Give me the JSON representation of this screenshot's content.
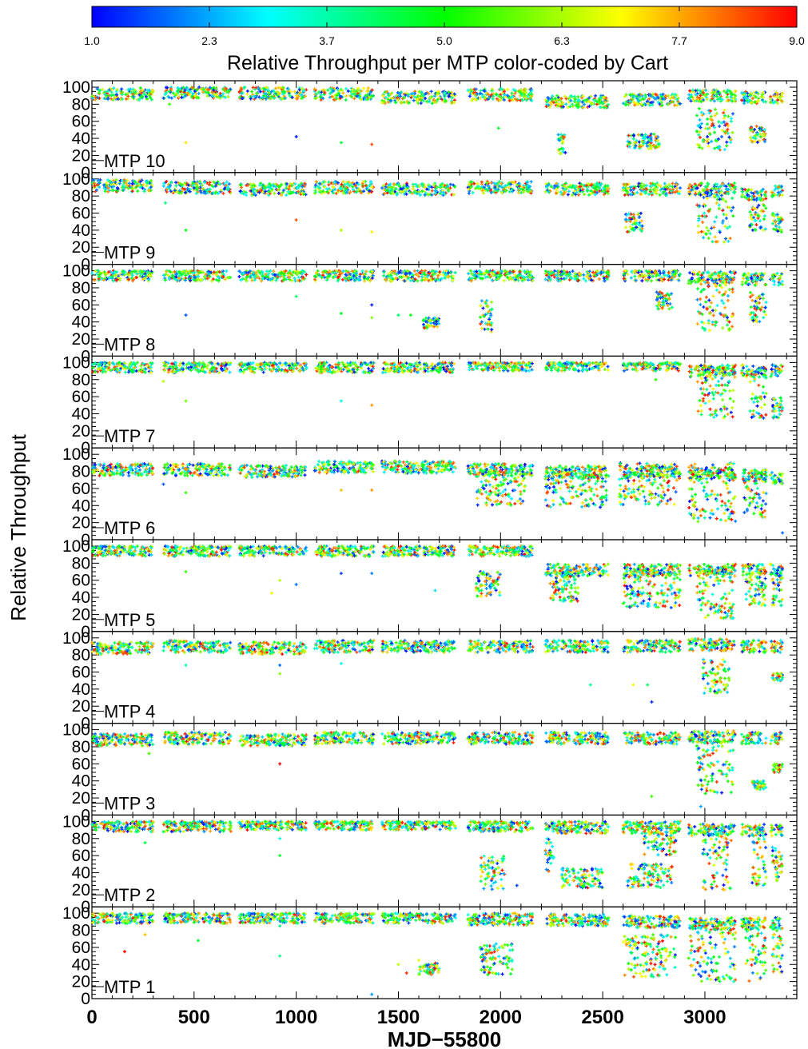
{
  "chart_data": {
    "type": "scatter",
    "title": "Relative Throughput per MTP color-coded by Cart",
    "xlabel": "MJD−55800",
    "ylabel": "Relative Throughput",
    "xlim": [
      0,
      3450
    ],
    "ylim": [
      0,
      100
    ],
    "xticks": [
      0,
      500,
      1000,
      1500,
      2000,
      2500,
      3000
    ],
    "yticks": [
      0,
      20,
      40,
      60,
      80,
      100
    ],
    "grid": false,
    "colorbar": {
      "label": "Relative Throughput per MTP color-coded by Cart",
      "ticks": [
        "1.0",
        "2.3",
        "3.7",
        "5.0",
        "6.3",
        "7.7",
        "9.0"
      ],
      "range": [
        1,
        9
      ],
      "colormap": [
        "#0000ff",
        "#00ffff",
        "#00ff00",
        "#ffff00",
        "#ff0000"
      ],
      "placement": "top"
    },
    "observing_windows": [
      [
        0,
        300
      ],
      [
        350,
        680
      ],
      [
        720,
        1050
      ],
      [
        1090,
        1380
      ],
      [
        1420,
        1780
      ],
      [
        1840,
        2160
      ],
      [
        2220,
        2530
      ],
      [
        2600,
        2880
      ],
      [
        2920,
        3150
      ],
      [
        3180,
        3300
      ],
      [
        3320,
        3380
      ]
    ],
    "panels": [
      {
        "label": "MTP 10",
        "baseline": [
          92,
          94,
          93,
          92,
          88,
          91,
          83,
          85,
          90,
          88,
          87
        ],
        "features": [
          {
            "x": [
              2280,
              2320
            ],
            "y": [
              22,
              45
            ]
          },
          {
            "x": [
              2620,
              2780
            ],
            "y": [
              28,
              45
            ]
          },
          {
            "x": [
              2960,
              3140
            ],
            "y": [
              25,
              75
            ]
          },
          {
            "x": [
              3220,
              3300
            ],
            "y": [
              35,
              55
            ]
          }
        ],
        "outliers": [
          [
            380,
            80
          ],
          [
            460,
            35
          ],
          [
            1000,
            42
          ],
          [
            1220,
            35
          ],
          [
            1370,
            33
          ],
          [
            1990,
            52
          ]
        ]
      },
      {
        "label": "MTP 9",
        "baseline": [
          92,
          90,
          88,
          90,
          88,
          90,
          88,
          88,
          88,
          82,
          85
        ],
        "features": [
          {
            "x": [
              2610,
              2700
            ],
            "y": [
              38,
              60
            ]
          },
          {
            "x": [
              2960,
              3140
            ],
            "y": [
              25,
              90
            ]
          },
          {
            "x": [
              3220,
              3300
            ],
            "y": [
              40,
              70
            ]
          },
          {
            "x": [
              3330,
              3380
            ],
            "y": [
              35,
              60
            ]
          }
        ],
        "outliers": [
          [
            360,
            72
          ],
          [
            460,
            40
          ],
          [
            1000,
            52
          ],
          [
            1220,
            40
          ],
          [
            1370,
            38
          ]
        ]
      },
      {
        "label": "MTP 8",
        "baseline": [
          95,
          95,
          95,
          95,
          95,
          95,
          95,
          95,
          92,
          90,
          90
        ],
        "features": [
          {
            "x": [
              1900,
              1960
            ],
            "y": [
              28,
              65
            ]
          },
          {
            "x": [
              1620,
              1700
            ],
            "y": [
              32,
              45
            ]
          },
          {
            "x": [
              2760,
              2840
            ],
            "y": [
              55,
              75
            ]
          },
          {
            "x": [
              2960,
              3140
            ],
            "y": [
              30,
              90
            ]
          },
          {
            "x": [
              3220,
              3300
            ],
            "y": [
              40,
              75
            ]
          }
        ],
        "outliers": [
          [
            460,
            48
          ],
          [
            1000,
            70
          ],
          [
            1220,
            50
          ],
          [
            1370,
            45
          ],
          [
            1370,
            60
          ],
          [
            1500,
            48
          ],
          [
            1560,
            48
          ]
        ]
      },
      {
        "label": "MTP 7",
        "baseline": [
          95,
          95,
          95,
          95,
          95,
          97,
          97,
          97,
          90,
          90,
          90
        ],
        "features": [
          {
            "x": [
              2960,
              3140
            ],
            "y": [
              35,
              95
            ]
          },
          {
            "x": [
              3220,
              3300
            ],
            "y": [
              35,
              95
            ]
          },
          {
            "x": [
              3330,
              3380
            ],
            "y": [
              35,
              60
            ]
          }
        ],
        "outliers": [
          [
            350,
            78
          ],
          [
            460,
            55
          ],
          [
            1220,
            55
          ],
          [
            1370,
            50
          ],
          [
            2760,
            80
          ]
        ]
      },
      {
        "label": "MTP 6",
        "baseline": [
          82,
          82,
          80,
          85,
          85,
          82,
          80,
          80,
          78,
          75,
          72
        ],
        "features": [
          {
            "x": [
              1880,
              2120
            ],
            "y": [
              40,
              80
            ]
          },
          {
            "x": [
              2220,
              2520
            ],
            "y": [
              38,
              80
            ]
          },
          {
            "x": [
              2580,
              2880
            ],
            "y": [
              40,
              90
            ]
          },
          {
            "x": [
              2920,
              3150
            ],
            "y": [
              20,
              90
            ]
          },
          {
            "x": [
              3190,
              3300
            ],
            "y": [
              25,
              80
            ]
          }
        ],
        "outliers": [
          [
            350,
            65
          ],
          [
            460,
            55
          ],
          [
            1220,
            58
          ],
          [
            1370,
            58
          ],
          [
            3380,
            8
          ]
        ]
      },
      {
        "label": "MTP 5",
        "baseline": [
          95,
          95,
          95,
          95,
          95,
          95,
          72,
          72,
          72,
          72,
          72
        ],
        "features": [
          {
            "x": [
              1880,
              2000
            ],
            "y": [
              40,
              70
            ]
          },
          {
            "x": [
              2240,
              2380
            ],
            "y": [
              35,
              65
            ]
          },
          {
            "x": [
              2600,
              2880
            ],
            "y": [
              28,
              70
            ]
          },
          {
            "x": [
              2960,
              3140
            ],
            "y": [
              15,
              70
            ]
          },
          {
            "x": [
              3200,
              3300
            ],
            "y": [
              30,
              65
            ]
          },
          {
            "x": [
              3330,
              3380
            ],
            "y": [
              30,
              70
            ]
          }
        ],
        "outliers": [
          [
            460,
            70
          ],
          [
            880,
            45
          ],
          [
            920,
            60
          ],
          [
            1000,
            55
          ],
          [
            1220,
            68
          ],
          [
            1370,
            68
          ],
          [
            1680,
            48
          ]
        ]
      },
      {
        "label": "MTP 4",
        "baseline": [
          88,
          90,
          88,
          90,
          90,
          90,
          90,
          90,
          92,
          90,
          90
        ],
        "features": [
          {
            "x": [
              2990,
              3120
            ],
            "y": [
              35,
              75
            ]
          },
          {
            "x": [
              3330,
              3380
            ],
            "y": [
              50,
              60
            ]
          }
        ],
        "outliers": [
          [
            460,
            68
          ],
          [
            920,
            68
          ],
          [
            920,
            58
          ],
          [
            1220,
            70
          ],
          [
            2440,
            45
          ],
          [
            2650,
            45
          ],
          [
            2720,
            45
          ],
          [
            2740,
            25
          ]
        ]
      },
      {
        "label": "MTP 3",
        "baseline": [
          88,
          90,
          88,
          90,
          90,
          90,
          90,
          90,
          92,
          90,
          90
        ],
        "features": [
          {
            "x": [
              2960,
              3140
            ],
            "y": [
              25,
              90
            ]
          },
          {
            "x": [
              3230,
              3300
            ],
            "y": [
              30,
              40
            ]
          },
          {
            "x": [
              3330,
              3380
            ],
            "y": [
              50,
              60
            ]
          }
        ],
        "outliers": [
          [
            280,
            72
          ],
          [
            920,
            60
          ],
          [
            2740,
            22
          ],
          [
            2980,
            10
          ]
        ]
      },
      {
        "label": "MTP 2",
        "baseline": [
          95,
          95,
          97,
          97,
          97,
          95,
          93,
          93,
          90,
          90,
          90
        ],
        "features": [
          {
            "x": [
              1900,
              2020
            ],
            "y": [
              20,
              60
            ]
          },
          {
            "x": [
              2220,
              2260
            ],
            "y": [
              40,
              80
            ]
          },
          {
            "x": [
              2300,
              2500
            ],
            "y": [
              22,
              45
            ]
          },
          {
            "x": [
              2620,
              2840
            ],
            "y": [
              22,
              50
            ]
          },
          {
            "x": [
              2700,
              2860
            ],
            "y": [
              60,
              95
            ]
          },
          {
            "x": [
              2990,
              3130
            ],
            "y": [
              20,
              90
            ]
          },
          {
            "x": [
              3230,
              3300
            ],
            "y": [
              25,
              80
            ]
          },
          {
            "x": [
              3330,
              3380
            ],
            "y": [
              30,
              70
            ]
          }
        ],
        "outliers": [
          [
            260,
            75
          ],
          [
            350,
            88
          ],
          [
            920,
            60
          ],
          [
            920,
            80
          ],
          [
            2080,
            25
          ]
        ]
      },
      {
        "label": "MTP 1",
        "baseline": [
          95,
          95,
          95,
          95,
          95,
          93,
          92,
          90,
          88,
          88,
          88
        ],
        "features": [
          {
            "x": [
              1600,
              1700
            ],
            "y": [
              28,
              42
            ]
          },
          {
            "x": [
              1900,
              2060
            ],
            "y": [
              28,
              65
            ]
          },
          {
            "x": [
              2600,
              2860
            ],
            "y": [
              25,
              75
            ]
          },
          {
            "x": [
              2920,
              3150
            ],
            "y": [
              20,
              90
            ]
          },
          {
            "x": [
              3200,
              3300
            ],
            "y": [
              20,
              90
            ]
          },
          {
            "x": [
              3330,
              3380
            ],
            "y": [
              30,
              80
            ]
          }
        ],
        "outliers": [
          [
            160,
            55
          ],
          [
            260,
            75
          ],
          [
            520,
            68
          ],
          [
            920,
            50
          ],
          [
            920,
            85
          ],
          [
            1370,
            5
          ],
          [
            1500,
            40
          ],
          [
            1540,
            30
          ],
          [
            1600,
            45
          ],
          [
            1680,
            35
          ]
        ]
      }
    ]
  }
}
